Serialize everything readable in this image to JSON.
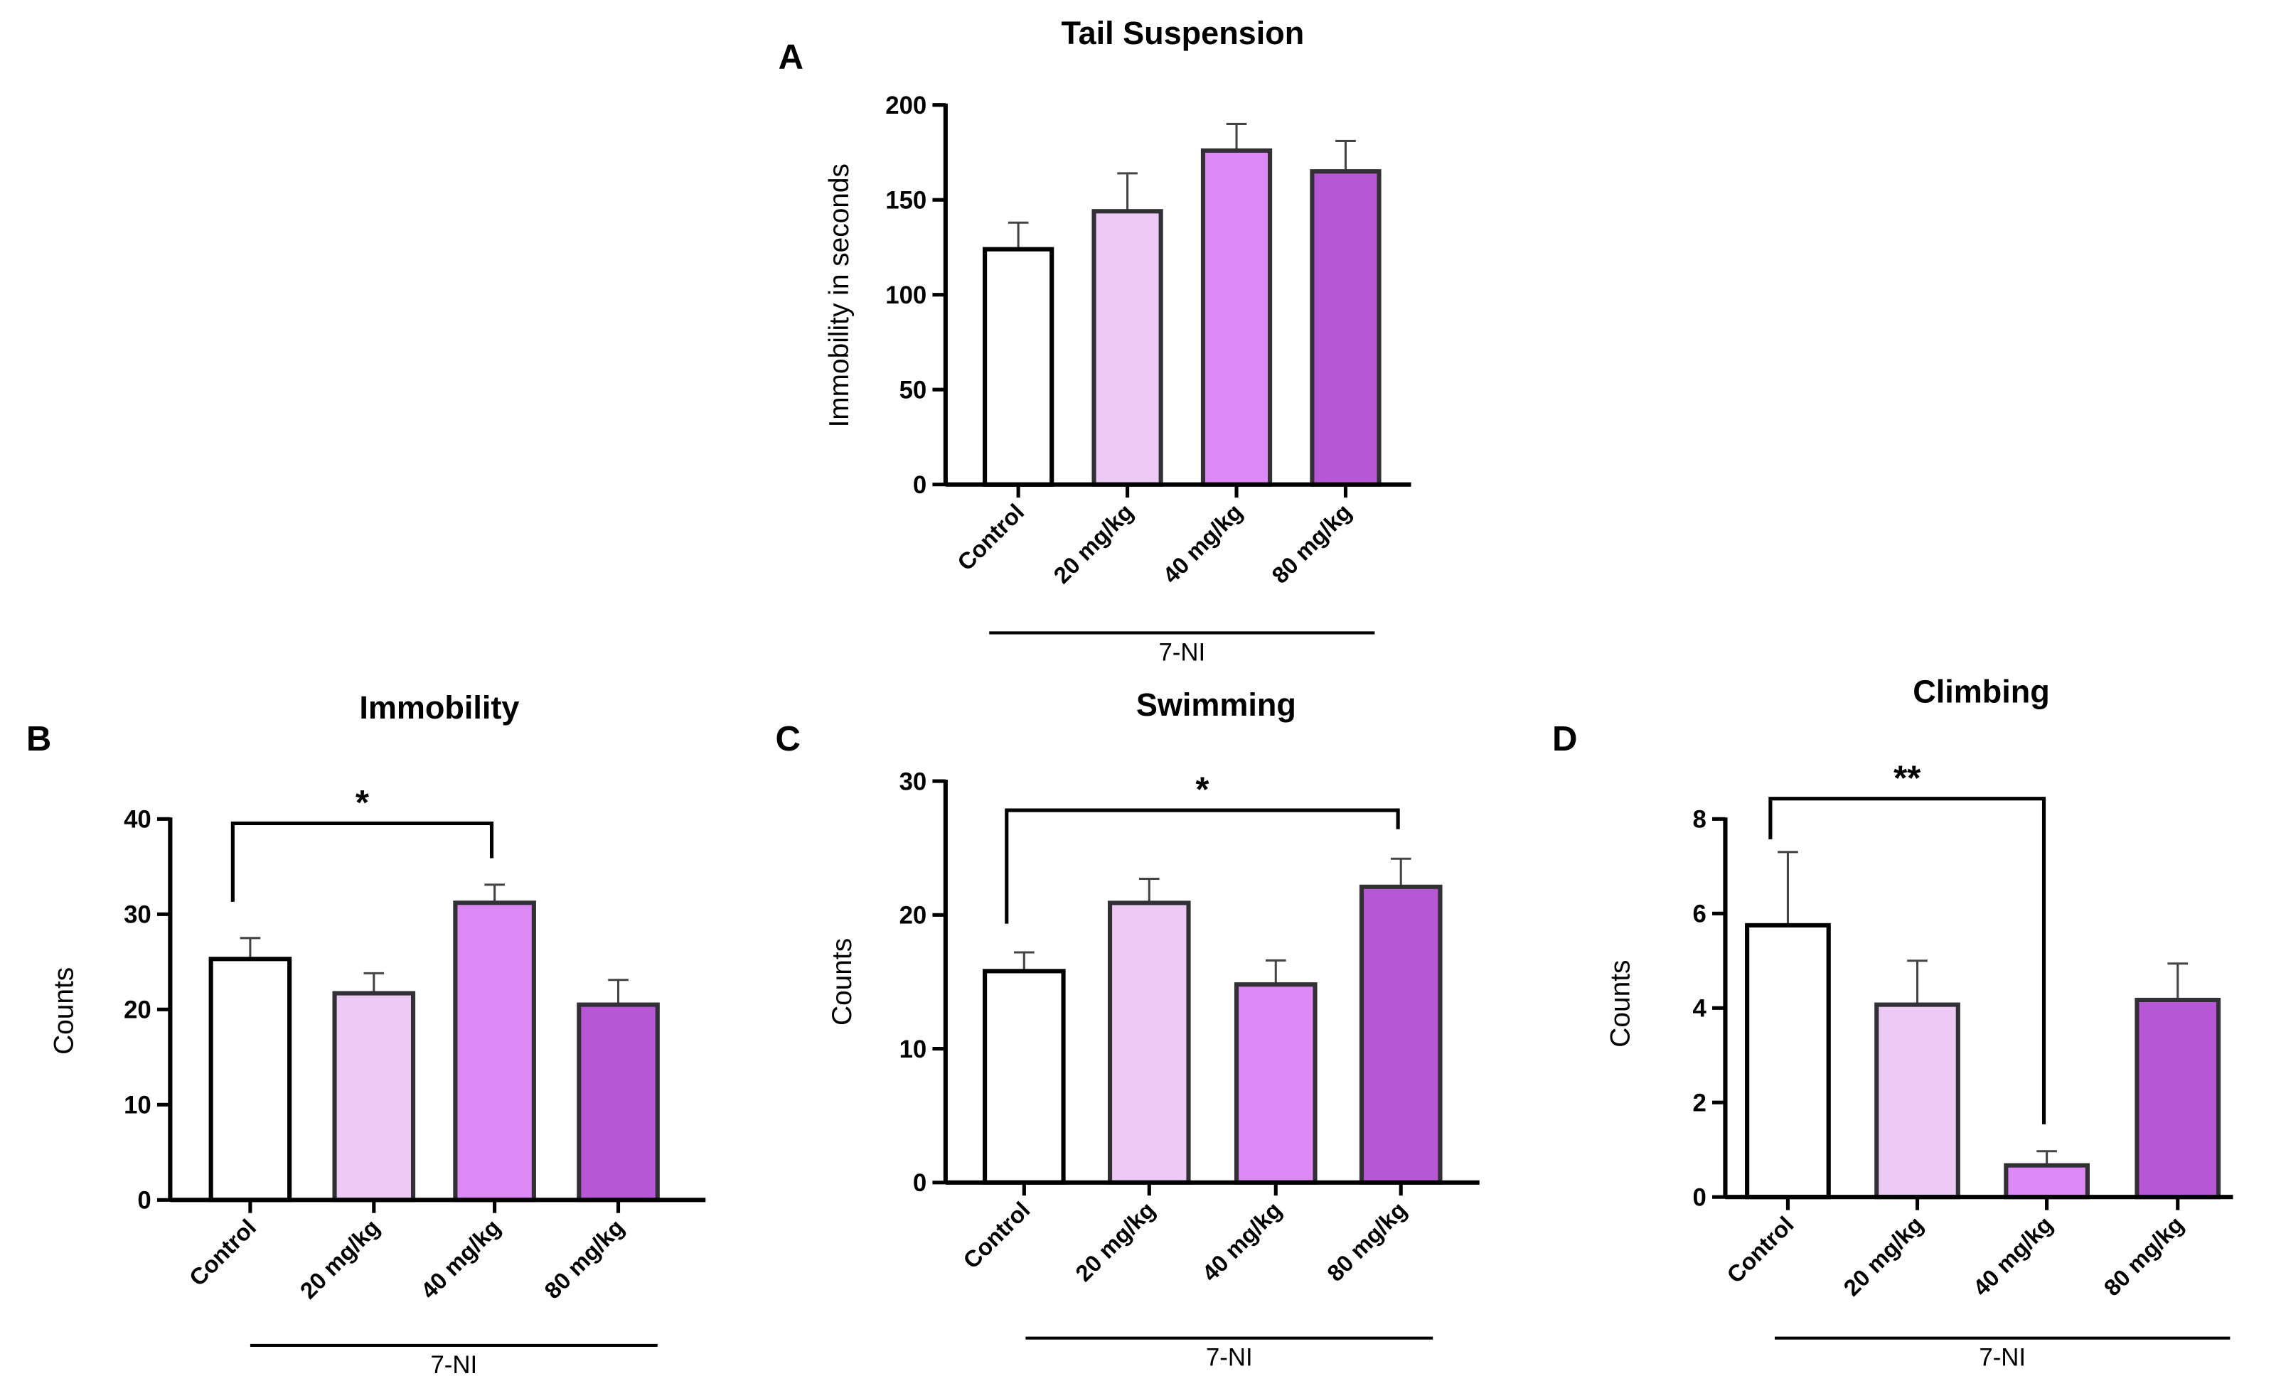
{
  "colors": {
    "control": "#ffffff",
    "mg20": "#edcaf5",
    "mg40": "#dc89f5",
    "mg80": "#b857d6",
    "outline": "#333035"
  },
  "chart_data": [
    {
      "type": "bar",
      "panel": "A",
      "title": "Tail Suspension",
      "ylabel": "Immobility in seconds",
      "xlabel": "",
      "group_label": "7-NI",
      "categories": [
        "Control",
        "20 mg/kg",
        "40 mg/kg",
        "80 mg/kg"
      ],
      "values": [
        124,
        144,
        176,
        165
      ],
      "errors": [
        14,
        20,
        14,
        16
      ],
      "ylim": [
        0,
        200
      ],
      "yticks": [
        0,
        50,
        100,
        150,
        200
      ],
      "annotations": []
    },
    {
      "type": "bar",
      "panel": "B",
      "title": "Immobility",
      "ylabel": "Counts",
      "xlabel": "",
      "group_label": "7-NI",
      "categories": [
        "Control",
        "20 mg/kg",
        "40 mg/kg",
        "80 mg/kg"
      ],
      "values": [
        25.3,
        21.7,
        31.2,
        20.5
      ],
      "errors": [
        2.2,
        2.1,
        1.9,
        2.6
      ],
      "ylim": [
        0,
        40
      ],
      "yticks": [
        0,
        10,
        20,
        30,
        40
      ],
      "annotations": [
        {
          "from": "Control",
          "to": "40 mg/kg",
          "label": "*"
        }
      ]
    },
    {
      "type": "bar",
      "panel": "C",
      "title": "Swimming",
      "ylabel": "Counts",
      "xlabel": "",
      "group_label": "7-NI",
      "categories": [
        "Control",
        "20 mg/kg",
        "40 mg/kg",
        "80 mg/kg"
      ],
      "values": [
        15.8,
        20.9,
        14.8,
        22.1
      ],
      "errors": [
        1.4,
        1.8,
        1.8,
        2.1
      ],
      "ylim": [
        0,
        30
      ],
      "yticks": [
        0,
        10,
        20,
        30
      ],
      "annotations": [
        {
          "from": "Control",
          "to": "80 mg/kg",
          "label": "*"
        }
      ]
    },
    {
      "type": "bar",
      "panel": "D",
      "title": "Climbing",
      "ylabel": "Counts",
      "xlabel": "",
      "group_label": "7-NI",
      "categories": [
        "Control",
        "20 mg/kg",
        "40 mg/kg",
        "80 mg/kg"
      ],
      "values": [
        5.75,
        4.07,
        0.67,
        4.17
      ],
      "errors": [
        1.55,
        0.93,
        0.3,
        0.77
      ],
      "ylim": [
        0,
        8
      ],
      "yticks": [
        0,
        2,
        4,
        6,
        8
      ],
      "annotations": [
        {
          "from": "Control",
          "to": "40 mg/kg",
          "label": "**"
        }
      ]
    }
  ]
}
